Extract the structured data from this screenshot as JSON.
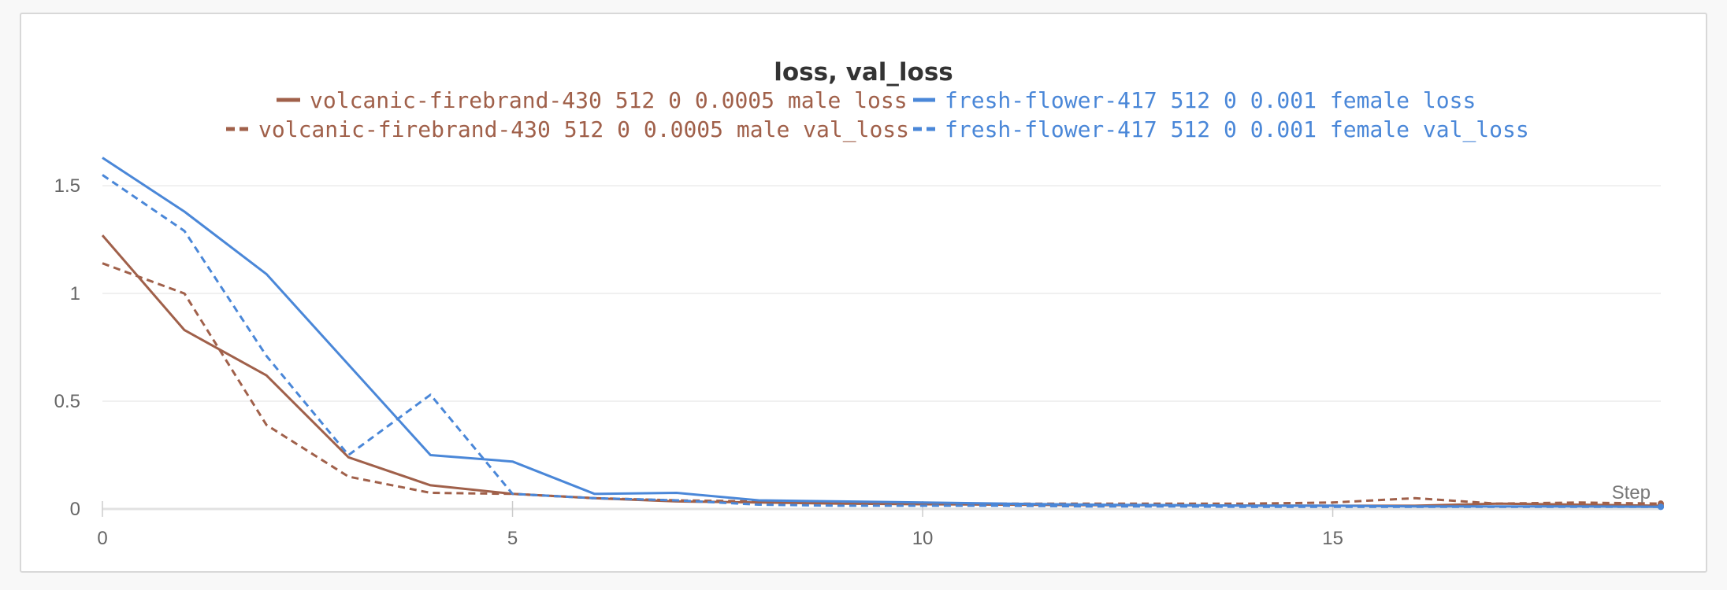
{
  "chart_data": {
    "type": "line",
    "title": "loss, val_loss",
    "xlabel": "Step",
    "ylabel": "",
    "xlim": [
      0,
      19
    ],
    "ylim": [
      0,
      1.65
    ],
    "xticks": [
      0,
      5,
      10,
      15
    ],
    "yticks": [
      0,
      0.5,
      1,
      1.5
    ],
    "ytick_labels": [
      "0",
      "0.5",
      "1",
      "1.5"
    ],
    "grid": true,
    "legend_position": "top",
    "series": [
      {
        "name": "volcanic-firebrand-430 512 0 0.0005 male loss",
        "color": "#a0604a",
        "dash": "solid",
        "x": [
          0,
          1,
          2,
          3,
          4,
          5,
          6,
          7,
          8,
          9,
          10,
          11,
          12,
          13,
          14,
          15,
          16,
          17,
          18,
          19
        ],
        "y": [
          1.27,
          0.83,
          0.62,
          0.24,
          0.11,
          0.07,
          0.05,
          0.035,
          0.03,
          0.025,
          0.022,
          0.02,
          0.018,
          0.017,
          0.016,
          0.015,
          0.015,
          0.025,
          0.02,
          0.015
        ]
      },
      {
        "name": "volcanic-firebrand-430 512 0 0.0005 male val_loss",
        "color": "#a0604a",
        "dash": "dashed",
        "x": [
          0,
          1,
          2,
          3,
          4,
          5,
          6,
          7,
          8,
          9,
          10,
          11,
          12,
          13,
          14,
          15,
          16,
          17,
          18,
          19
        ],
        "y": [
          1.14,
          1.0,
          0.39,
          0.15,
          0.075,
          0.07,
          0.05,
          0.04,
          0.035,
          0.03,
          0.025,
          0.025,
          0.025,
          0.025,
          0.025,
          0.03,
          0.05,
          0.025,
          0.03,
          0.025
        ]
      },
      {
        "name": "fresh-flower-417 512 0 0.001 female loss",
        "color": "#4a87d8",
        "dash": "solid",
        "x": [
          0,
          1,
          2,
          3,
          4,
          5,
          6,
          7,
          8,
          9,
          10,
          11,
          12,
          13,
          14,
          15,
          16,
          17,
          18,
          19
        ],
        "y": [
          1.63,
          1.38,
          1.09,
          0.67,
          0.25,
          0.22,
          0.07,
          0.075,
          0.04,
          0.035,
          0.03,
          0.025,
          0.02,
          0.018,
          0.015,
          0.015,
          0.012,
          0.012,
          0.012,
          0.01
        ]
      },
      {
        "name": "fresh-flower-417 512 0 0.001 female val_loss",
        "color": "#4a87d8",
        "dash": "dashed",
        "x": [
          0,
          1,
          2,
          3,
          4,
          5,
          6,
          7,
          8,
          9,
          10,
          11,
          12,
          13,
          14,
          15,
          16,
          17,
          18,
          19
        ],
        "y": [
          1.55,
          1.29,
          0.71,
          0.25,
          0.53,
          0.07,
          0.05,
          0.04,
          0.02,
          0.015,
          0.015,
          0.015,
          0.012,
          0.012,
          0.01,
          0.01,
          0.01,
          0.01,
          0.01,
          0.01
        ]
      }
    ]
  }
}
